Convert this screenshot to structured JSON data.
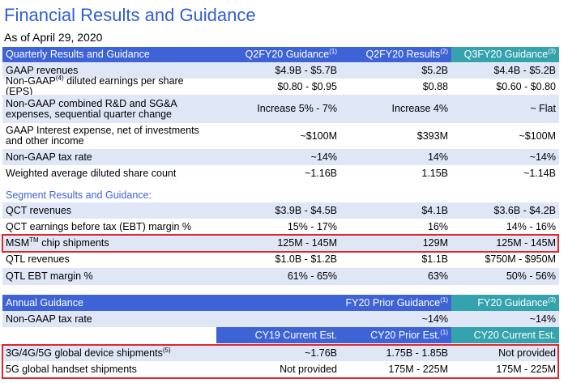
{
  "title": "Financial Results and Guidance",
  "subtitle": "As of April 29, 2020",
  "quarterly": {
    "header": [
      "Quarterly Results and Guidance",
      {
        "text": "Q2FY20 Guidance",
        "sup": "(1)"
      },
      {
        "text": "Q2FY20 Results",
        "sup": "(2)"
      },
      {
        "text": "Q3FY20 Guidance",
        "sup": "(3)"
      }
    ],
    "rows": [
      [
        "GAAP revenues",
        "$4.9B - $5.7B",
        "$5.2B",
        "$4.4B - $5.2B"
      ],
      [
        {
          "text": "Non-GAAP",
          "sup": "(4)",
          "rest": " diluted earnings per share (EPS)"
        },
        "$0.80 - $0.95",
        "$0.88",
        "$0.60 - $0.80"
      ],
      [
        "Non-GAAP combined R&D and SG&A expenses, sequential quarter change",
        "Increase 5% - 7%",
        "Increase 4%",
        "~ Flat"
      ],
      [
        "GAAP Interest expense, net of investments and other income",
        "~$100M",
        "$393M",
        "~$100M"
      ],
      [
        "Non-GAAP tax rate",
        "~14%",
        "14%",
        "~14%"
      ],
      [
        "Weighted average diluted share count",
        "~1.16B",
        "1.15B",
        "~1.14B"
      ]
    ]
  },
  "segment": {
    "title": "Segment Results and Guidance:",
    "rows": [
      [
        "QCT revenues",
        "$3.9B - $4.5B",
        "$4.1B",
        "$3.6B - $4.2B"
      ],
      [
        "QCT earnings before tax (EBT) margin %",
        "15% - 17%",
        "16%",
        "14% - 16%"
      ],
      [
        {
          "text": "MSM",
          "sup": "TM",
          "rest": " chip shipments"
        },
        "125M - 145M",
        "129M",
        "125M - 145M"
      ],
      [
        "QTL revenues",
        "$1.0B - $1.2B",
        "$1.1B",
        "$750M - $950M"
      ],
      [
        "QTL EBT margin %",
        "61% - 65%",
        "63%",
        "50% - 56%"
      ]
    ]
  },
  "annual": {
    "header": [
      "Annual Guidance",
      null,
      {
        "text": "FY20 Prior Guidance",
        "sup": "(1)"
      },
      {
        "text": "FY20 Guidance",
        "sup": "(3)"
      }
    ],
    "rows": [
      [
        "Non-GAAP tax rate",
        null,
        "~14%",
        "~14%"
      ]
    ],
    "estimates_header": [
      null,
      "CY19 Current Est.",
      {
        "text": "CY20 Prior Est.",
        "sup": "(1)"
      },
      "CY20 Current Est."
    ],
    "estimate_rows": [
      [
        {
          "text": "3G/4G/5G global device shipments",
          "sup": "(5)"
        },
        "~1.76B",
        "1.75B - 1.85B",
        "Not provided"
      ],
      [
        "5G global handset shipments",
        "Not provided",
        "175M - 225M",
        "175M - 225M"
      ]
    ]
  }
}
